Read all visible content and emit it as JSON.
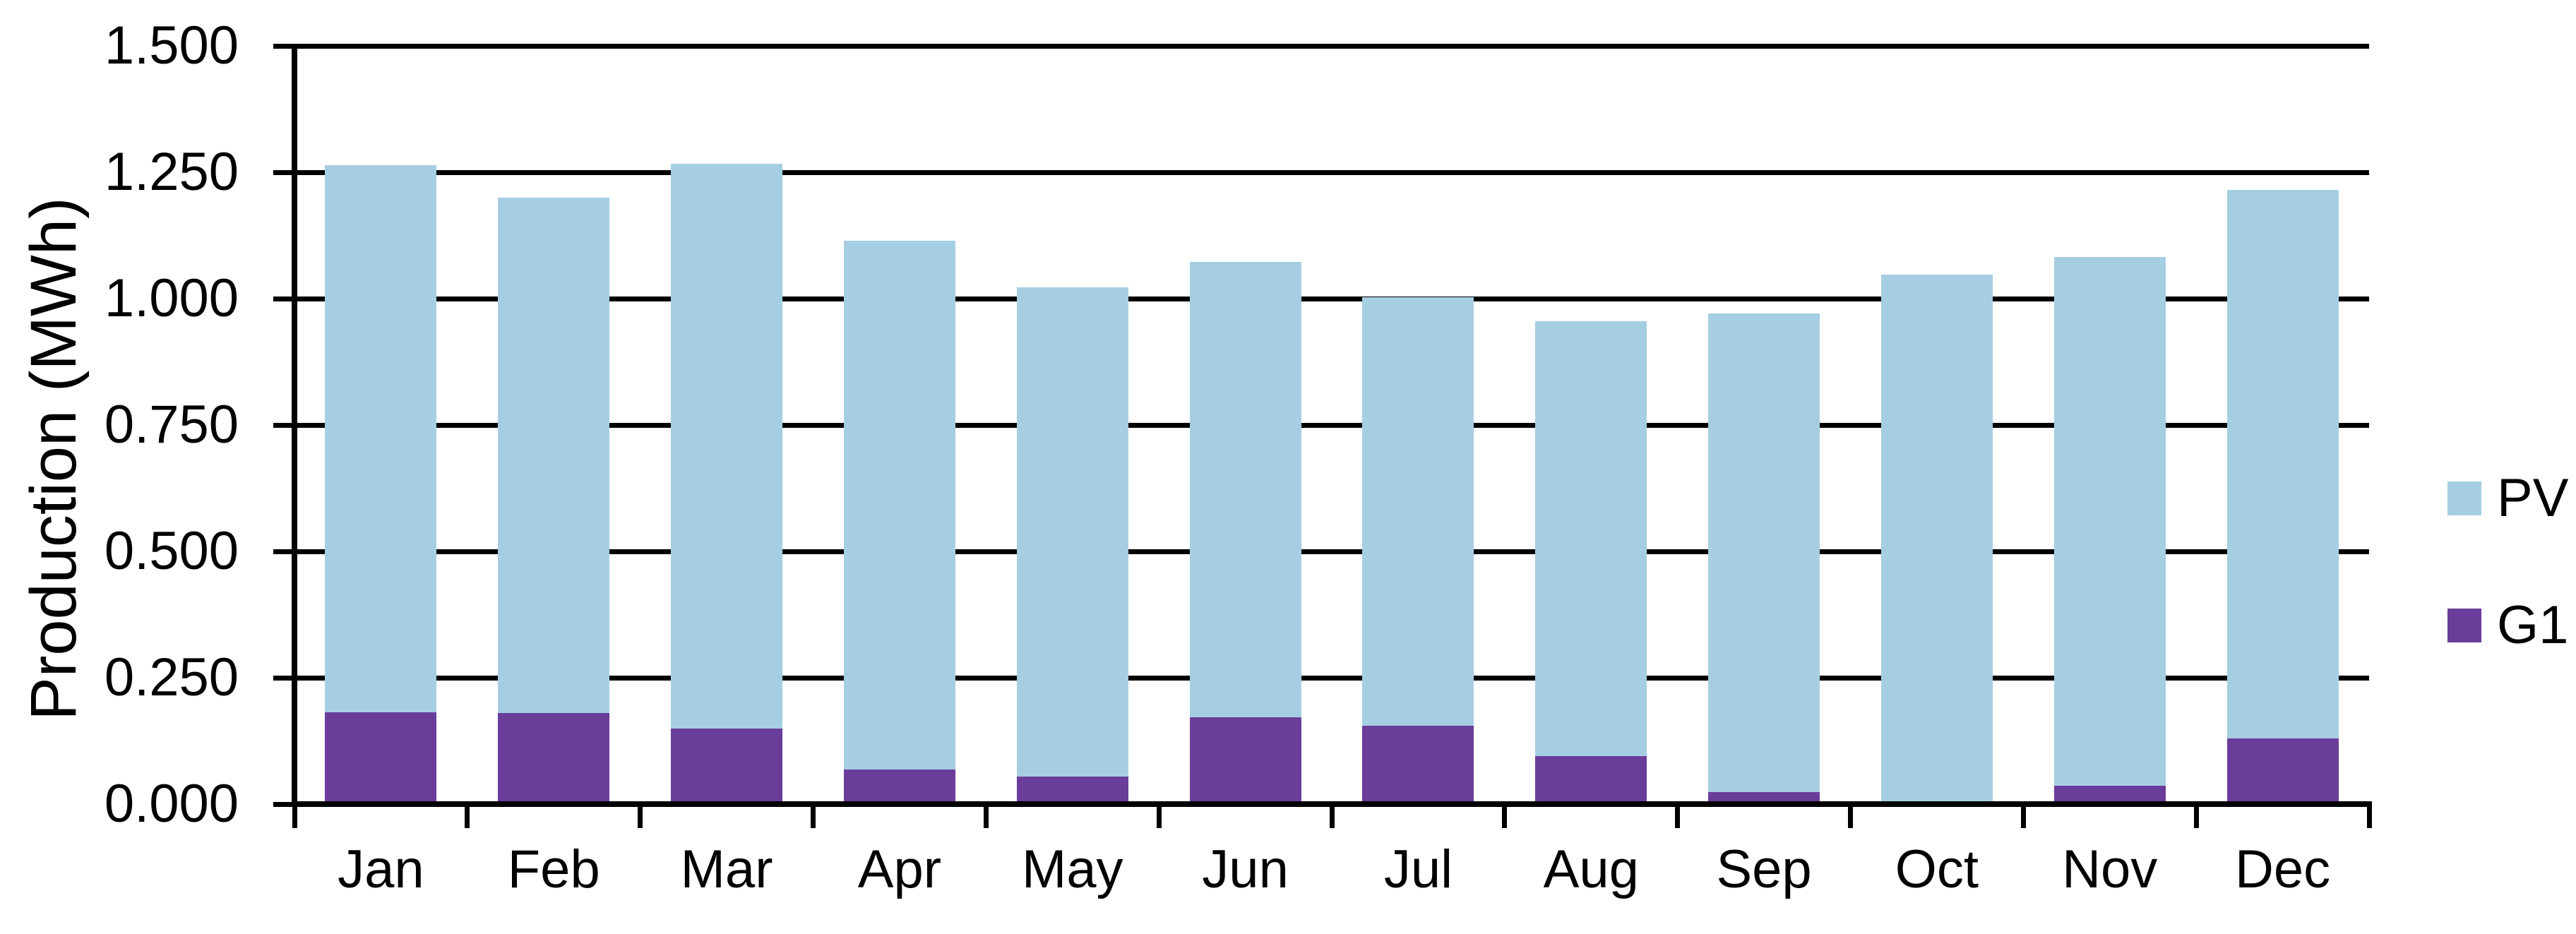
{
  "chart_data": {
    "type": "bar",
    "stacked": true,
    "title": "",
    "xlabel": "",
    "ylabel": "Production (MWh)",
    "categories": [
      "Jan",
      "Feb",
      "Mar",
      "Apr",
      "May",
      "Jun",
      "Jul",
      "Aug",
      "Sep",
      "Oct",
      "Nov",
      "Dec"
    ],
    "series": [
      {
        "name": "PV",
        "color": "#a6cee3",
        "values": [
          1.082,
          1.02,
          1.117,
          1.045,
          0.968,
          0.9,
          0.848,
          0.86,
          0.947,
          1.043,
          1.047,
          1.085
        ]
      },
      {
        "name": "G1",
        "color": "#6a3d9a",
        "values": [
          0.182,
          0.18,
          0.15,
          0.069,
          0.054,
          0.172,
          0.155,
          0.095,
          0.024,
          0.005,
          0.036,
          0.13
        ]
      }
    ],
    "stack_order_bottom_to_top": [
      "G1",
      "PV"
    ],
    "stack_totals": [
      1.264,
      1.2,
      1.267,
      1.114,
      1.022,
      1.072,
      1.003,
      0.955,
      0.971,
      1.048,
      1.083,
      1.215
    ],
    "ylim": [
      0,
      1.5
    ],
    "ytick_labels": [
      "0.000",
      "0.250",
      "0.500",
      "0.750",
      "1.000",
      "1.250",
      "1.500"
    ],
    "ytick_values": [
      0,
      0.25,
      0.5,
      0.75,
      1.0,
      1.25,
      1.5
    ],
    "grid": true,
    "legend_position": "right",
    "axis_color": "#000000",
    "background_color": "#ffffff"
  },
  "legend": {
    "items": [
      {
        "label": "PV",
        "color": "#a6cee3"
      },
      {
        "label": "G1",
        "color": "#6a3d9a"
      }
    ]
  }
}
